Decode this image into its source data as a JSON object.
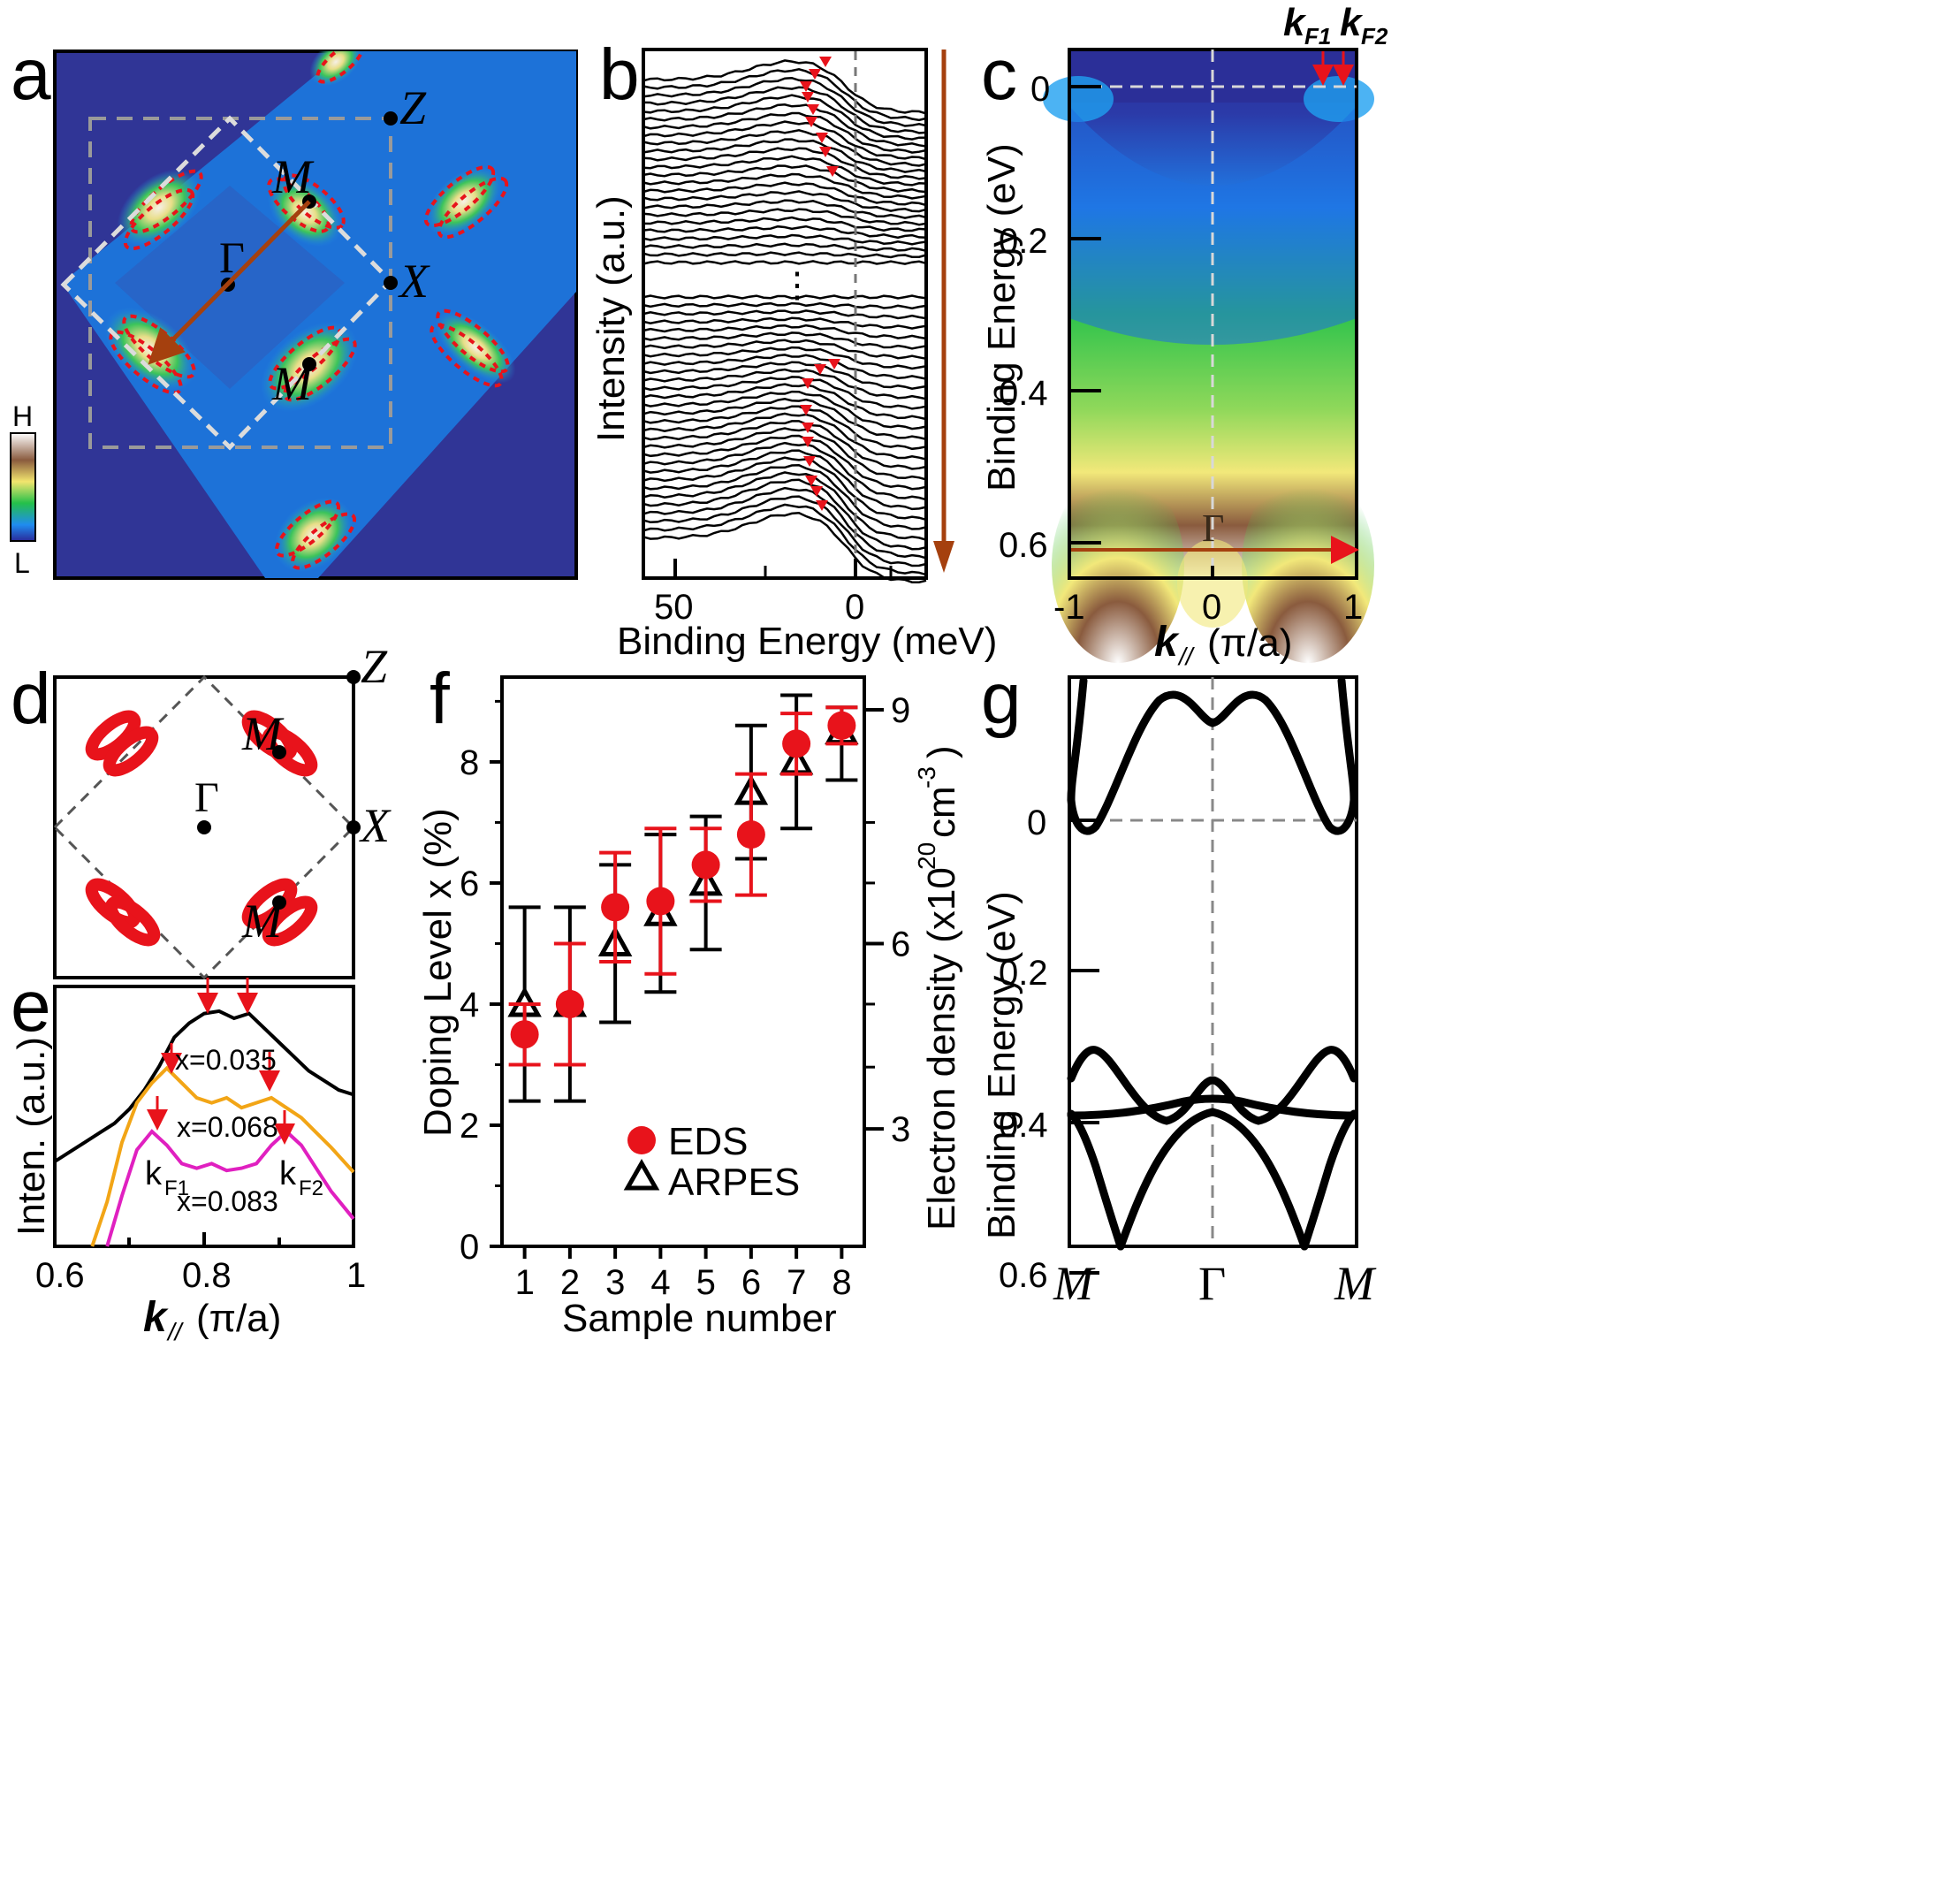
{
  "panels": {
    "a": {
      "letter": "a",
      "sym_Z": "Z",
      "sym_X": "X",
      "sym_M_top": "M",
      "sym_M_bot": "M",
      "sym_Gamma": "Γ",
      "cbar_high": "H",
      "cbar_low": "L"
    },
    "b": {
      "letter": "b",
      "ylabel": "Intensity (a.u.)",
      "xlabel": "Binding Energy (meV)",
      "xticks": [
        "50",
        "0"
      ],
      "ellipsis": "⋮"
    },
    "c": {
      "letter": "c",
      "ylabel": "Binding Energy (eV)",
      "xlabel_sym": "k",
      "xlabel_sub": "//",
      "xlabel_unit": "(π/a)",
      "yticks": [
        "0",
        "0.2",
        "0.4",
        "0.6"
      ],
      "xticks": [
        "-1",
        "0",
        "1"
      ],
      "kf1": "k",
      "kf1_sub": "F1",
      "kf2": "k",
      "kf2_sub": "F2",
      "sym_Gamma": "Γ"
    },
    "d": {
      "letter": "d",
      "sym_Z": "Z",
      "sym_X": "X",
      "sym_M_top": "M",
      "sym_M_bot": "M",
      "sym_Gamma": "Γ"
    },
    "e": {
      "letter": "e",
      "ylabel": "Inten. (a.u.)",
      "xlabel_sym": "k",
      "xlabel_sub": "//",
      "xlabel_unit": "(π/a)",
      "xticks": [
        "0.6",
        "0.8",
        "1"
      ],
      "labels": [
        "x=0.035",
        "x=0.068",
        "x=0.083"
      ],
      "kf1": "k",
      "kf1_sub": "F1",
      "kf2": "k",
      "kf2_sub": "F2"
    },
    "f": {
      "letter": "f",
      "ylabel": "Doping Level x (%)",
      "xlabel": "Sample number",
      "ylabel_right": "Electron density (x10",
      "ylabel_right_sup": "20",
      "ylabel_right_unit": "cm",
      "ylabel_right_sup2": "-3",
      "ylabel_right_close": ")",
      "legend": [
        "EDS",
        "ARPES"
      ]
    },
    "g": {
      "letter": "g",
      "ylabel": "Binding Energy (eV)",
      "yticks": [
        "0",
        "0.2",
        "0.4",
        "0.6"
      ],
      "xticks": [
        "M",
        "Γ",
        "M"
      ]
    }
  },
  "chart_data": [
    {
      "type": "scatter",
      "panel": "f",
      "title": "",
      "xlabel": "Sample number",
      "ylabel": "Doping Level x (%)",
      "ylabel_right": "Electron density (x10^20 cm^-3)",
      "x": [
        1,
        2,
        3,
        4,
        5,
        6,
        7,
        8
      ],
      "xticks": [
        "1",
        "2",
        "3",
        "4",
        "5",
        "6",
        "7",
        "8"
      ],
      "yticks": [
        "0",
        "2",
        "4",
        "6",
        "8"
      ],
      "yticks_right": [
        "3",
        "6",
        "9"
      ],
      "ylim": [
        0,
        9.4
      ],
      "xlim": [
        0.5,
        8.5
      ],
      "series": [
        {
          "name": "EDS",
          "color": "#e8131b",
          "marker": "circle",
          "values": [
            3.5,
            4.0,
            5.6,
            5.7,
            6.3,
            6.8,
            8.3,
            8.6
          ],
          "err_lo": [
            3.0,
            3.0,
            4.7,
            4.5,
            5.7,
            5.8,
            7.8,
            8.3
          ],
          "err_hi": [
            4.0,
            5.0,
            6.5,
            6.9,
            6.9,
            7.8,
            8.8,
            8.9
          ]
        },
        {
          "name": "ARPES",
          "color": "#000000",
          "marker": "triangle",
          "values": [
            4.0,
            4.0,
            5.0,
            5.5,
            6.0,
            7.5,
            8.0,
            8.5
          ],
          "err_lo": [
            2.4,
            2.4,
            3.7,
            4.2,
            4.9,
            6.4,
            6.9,
            7.7
          ],
          "err_hi": [
            5.6,
            5.6,
            6.3,
            6.8,
            7.1,
            8.6,
            9.1,
            8.9
          ]
        }
      ]
    },
    {
      "type": "line",
      "panel": "e",
      "xlabel": "k// (π/a)",
      "ylabel": "Inten. (a.u.)",
      "xlim": [
        0.6,
        1.0
      ],
      "xticks": [
        "0.6",
        "0.8",
        "1"
      ],
      "series": [
        {
          "name": "x=0.035",
          "color": "#000000",
          "x": [
            0.6,
            0.62,
            0.64,
            0.66,
            0.68,
            0.7,
            0.72,
            0.74,
            0.76,
            0.78,
            0.8,
            0.82,
            0.84,
            0.86,
            0.88,
            0.9,
            0.92,
            0.94,
            0.96,
            0.98,
            1.0
          ],
          "y": [
            0.3,
            0.34,
            0.38,
            0.42,
            0.46,
            0.52,
            0.6,
            0.7,
            0.82,
            0.88,
            0.92,
            0.93,
            0.9,
            0.92,
            0.86,
            0.8,
            0.74,
            0.68,
            0.64,
            0.6,
            0.58
          ]
        },
        {
          "name": "x=0.068",
          "color": "#f2a516",
          "x": [
            0.65,
            0.67,
            0.69,
            0.71,
            0.73,
            0.75,
            0.77,
            0.79,
            0.81,
            0.83,
            0.85,
            0.87,
            0.89,
            0.91,
            0.93,
            0.95,
            0.97,
            1.0
          ],
          "y": [
            0.0,
            0.18,
            0.42,
            0.58,
            0.66,
            0.72,
            0.66,
            0.6,
            0.58,
            0.6,
            0.56,
            0.58,
            0.6,
            0.56,
            0.52,
            0.46,
            0.4,
            0.3
          ]
        },
        {
          "name": "x=0.083",
          "color": "#e020c0",
          "x": [
            0.67,
            0.69,
            0.71,
            0.73,
            0.75,
            0.77,
            0.79,
            0.81,
            0.83,
            0.85,
            0.87,
            0.89,
            0.91,
            0.93,
            0.95,
            0.97,
            1.0
          ],
          "y": [
            0.0,
            0.22,
            0.42,
            0.5,
            0.44,
            0.36,
            0.34,
            0.36,
            0.33,
            0.34,
            0.36,
            0.44,
            0.5,
            0.44,
            0.34,
            0.24,
            0.12
          ]
        }
      ]
    }
  ]
}
